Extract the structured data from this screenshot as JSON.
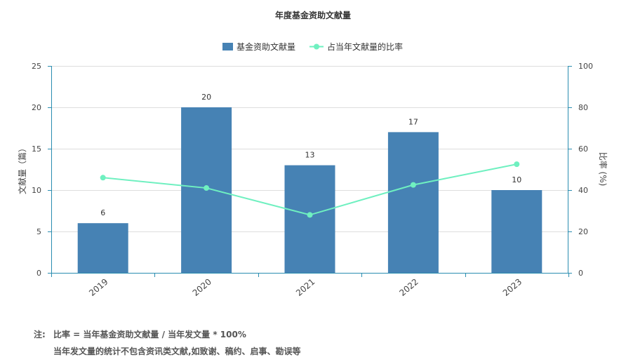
{
  "chart_data": {
    "type": "bar+line",
    "title": "年度基金资助文献量",
    "categories": [
      "2019",
      "2020",
      "2021",
      "2022",
      "2023"
    ],
    "series": [
      {
        "name": "基金资助文献量",
        "type": "bar",
        "axis": "left",
        "values": [
          6,
          20,
          13,
          17,
          10
        ],
        "color": "#4682b4"
      },
      {
        "name": "占当年文献量的比率",
        "type": "line",
        "axis": "right",
        "values": [
          46,
          41,
          28,
          42.5,
          52.5
        ],
        "color": "#6ff0c0"
      }
    ],
    "ylabel": "文献量（篇）",
    "ylabel_right": "比率 (%)",
    "ylim": [
      0,
      25
    ],
    "ylim_right": [
      0,
      100
    ],
    "yticks": [
      "0",
      "5",
      "10",
      "15",
      "20",
      "25"
    ],
    "yticks_right": [
      "0",
      "20",
      "40",
      "60",
      "80",
      "100"
    ],
    "grid": true,
    "legend_position": "top-center"
  },
  "notes": {
    "label": "注:",
    "line1": "比率 = 当年基金资助文献量 / 当年发文量 * 100%",
    "line2": "当年发文量的统计不包含资讯类文献,如致谢、稿约、启事、勘误等"
  }
}
